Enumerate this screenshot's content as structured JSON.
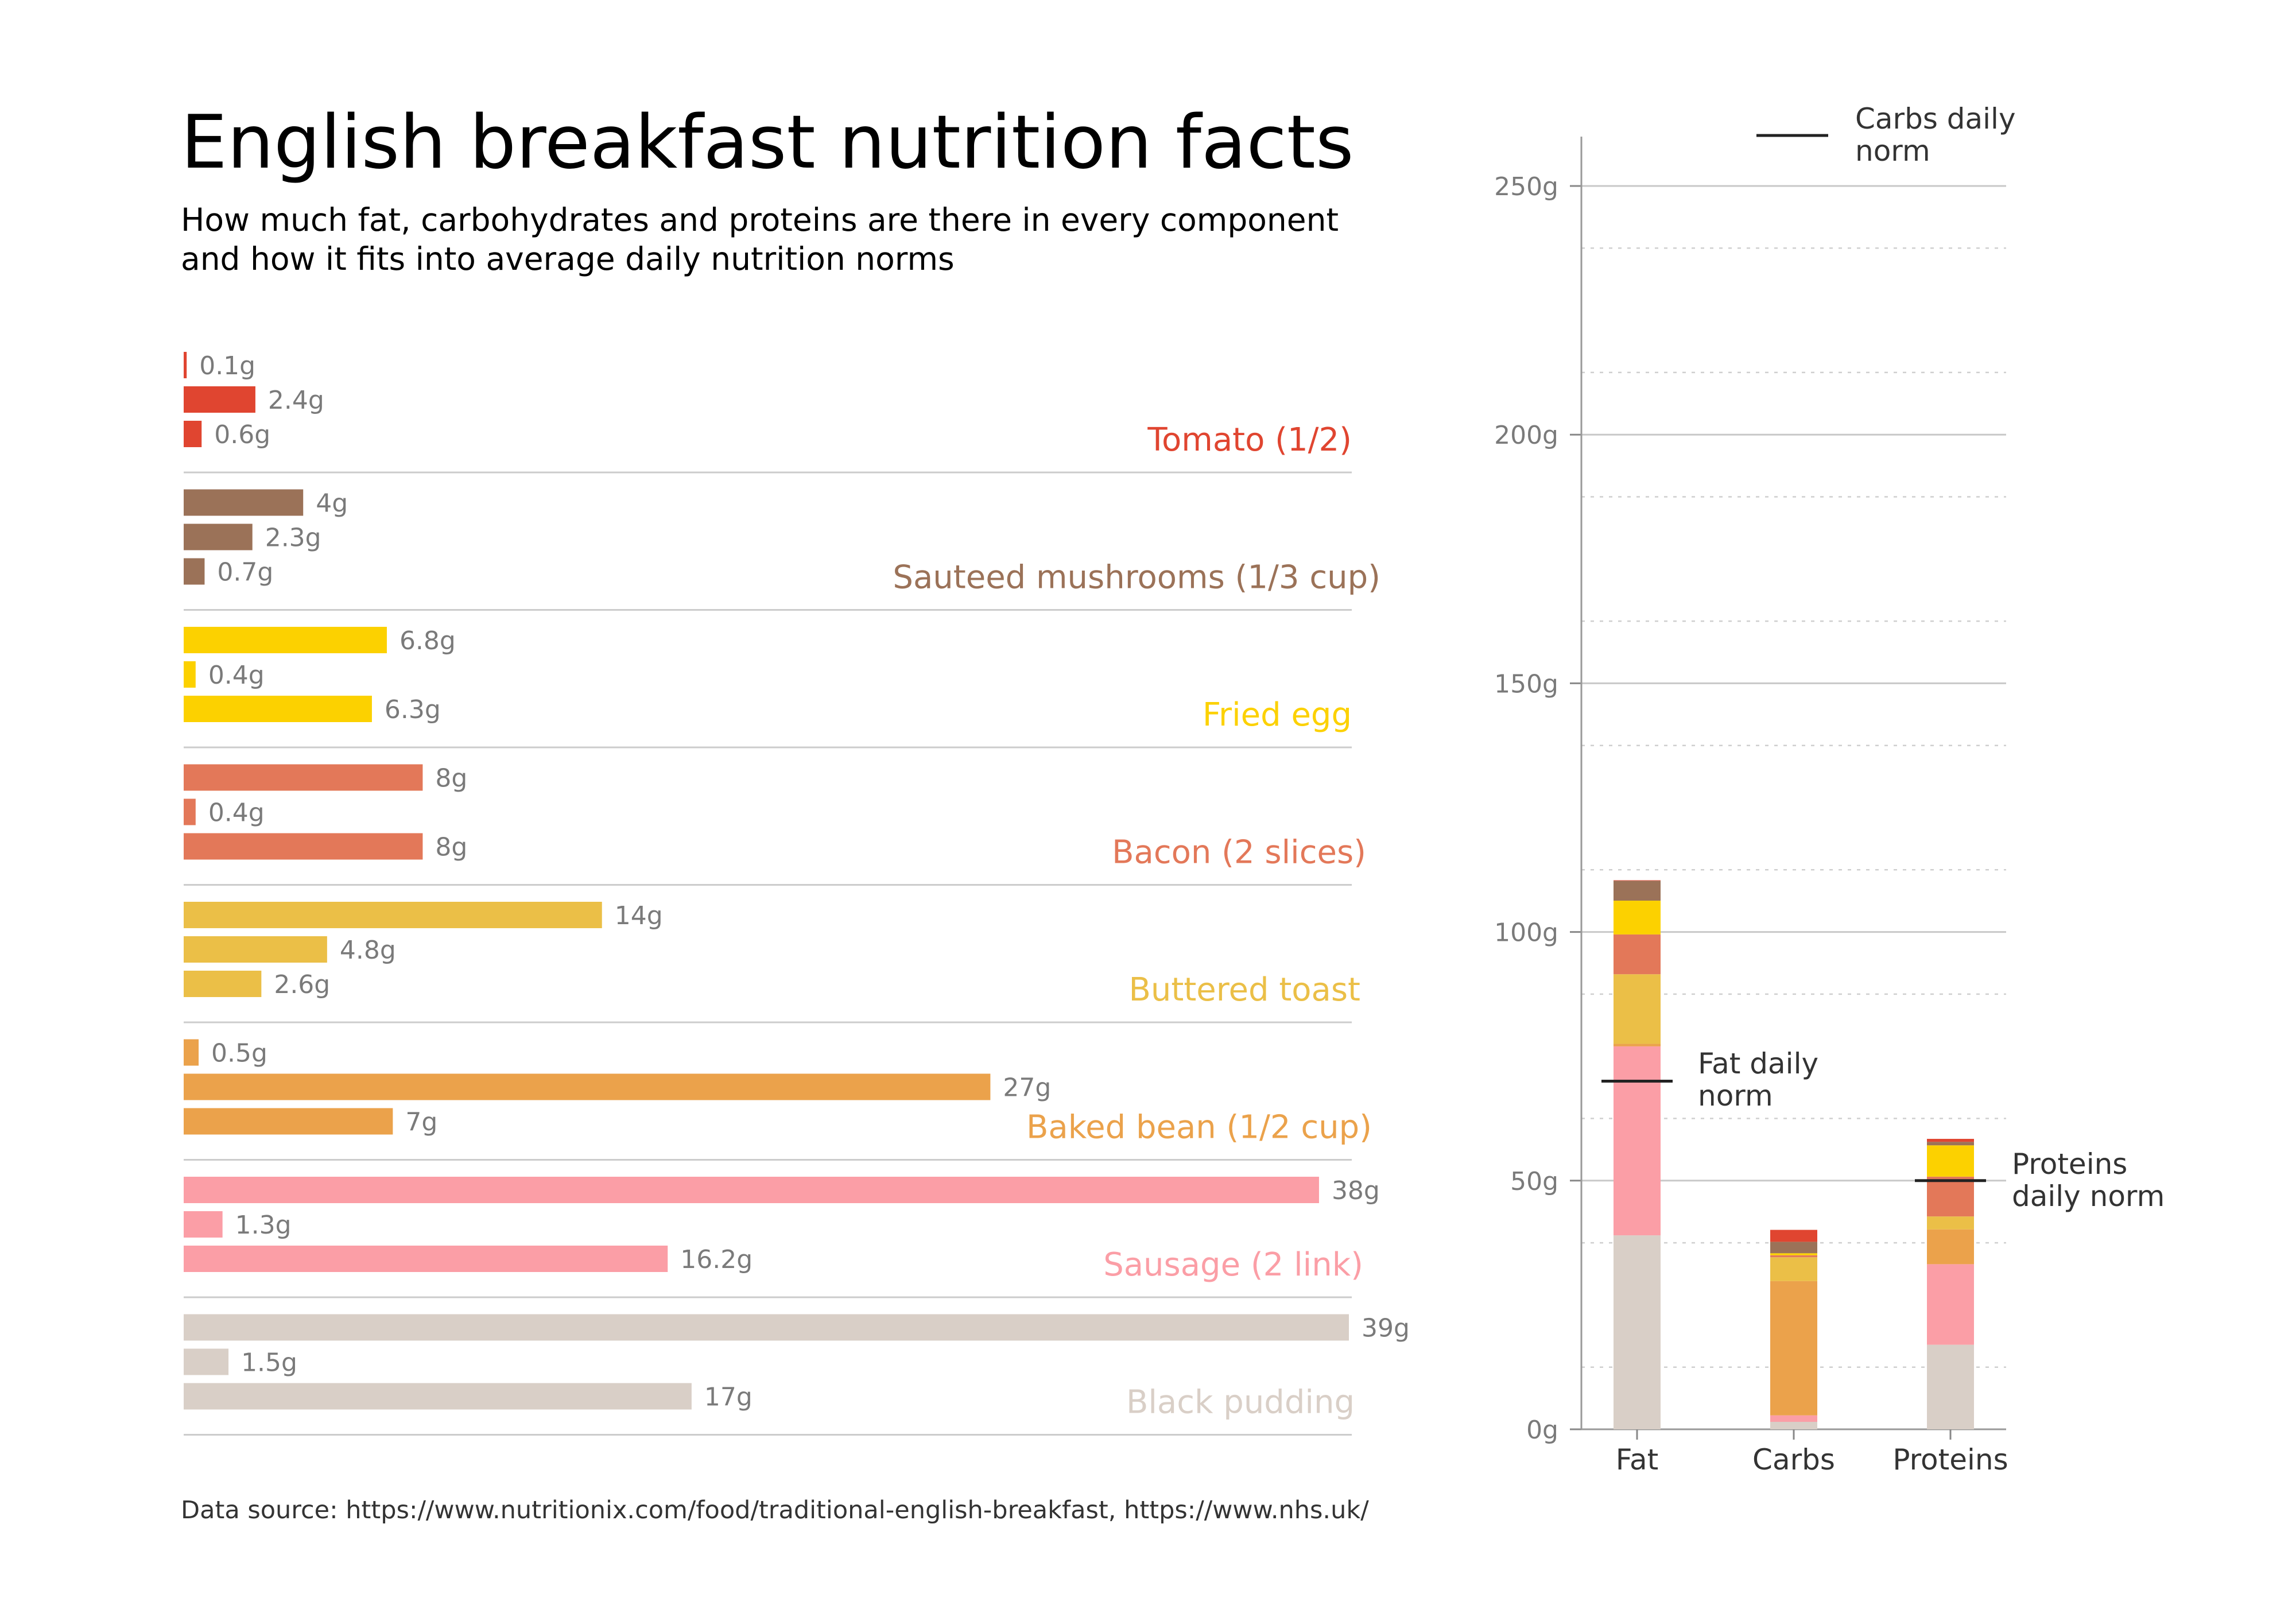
{
  "title": "English breakfast nutrition facts",
  "subtitle_lines": [
    "How much fat, carbohydrates and proteins are there in every component",
    "and how it fits into average daily nutrition norms"
  ],
  "source": "Data source: https://www.nutritionix.com/food/traditional-english-breakfast, https://www.nhs.uk/",
  "chart_data": [
    {
      "type": "bar",
      "orientation": "horizontal",
      "groups": [
        {
          "food": "Tomato (1/2)",
          "color": "#e04530",
          "values": [
            0.1,
            2.4,
            0.6
          ],
          "labels": [
            "0.1g",
            "2.4g",
            "0.6g"
          ]
        },
        {
          "food": "Sauteed mushrooms (1/3 cup)",
          "color": "#9b7258",
          "values": [
            4,
            2.3,
            0.7
          ],
          "labels": [
            "4g",
            "2.3g",
            "0.7g"
          ]
        },
        {
          "food": "Fried egg",
          "color": "#fcd100",
          "values": [
            6.8,
            0.4,
            6.3
          ],
          "labels": [
            "6.8g",
            "0.4g",
            "6.3g"
          ]
        },
        {
          "food": "Bacon (2 slices)",
          "color": "#e37859",
          "values": [
            8,
            0.4,
            8
          ],
          "labels": [
            "8g",
            "0.4g",
            "8g"
          ]
        },
        {
          "food": "Buttered toast",
          "color": "#ebbf47",
          "values": [
            14,
            4.8,
            2.6
          ],
          "labels": [
            "14g",
            "4.8g",
            "2.6g"
          ]
        },
        {
          "food": "Baked bean (1/2 cup)",
          "color": "#eba24b",
          "values": [
            0.5,
            27,
            7
          ],
          "labels": [
            "0.5g",
            "27g",
            "7g"
          ]
        },
        {
          "food": "Sausage (2 link)",
          "color": "#fb9ea6",
          "values": [
            38,
            1.3,
            16.2
          ],
          "labels": [
            "38g",
            "1.3g",
            "16.2g"
          ]
        },
        {
          "food": "Black pudding",
          "color": "#d9cfc7",
          "values": [
            39,
            1.5,
            17
          ],
          "labels": [
            "39g",
            "1.5g",
            "17g"
          ]
        }
      ],
      "xlim": [
        0,
        39
      ],
      "grid": false
    },
    {
      "type": "bar",
      "stacked": true,
      "categories": [
        "Fat",
        "Carbs",
        "Proteins"
      ],
      "ylim": [
        0,
        260
      ],
      "yticks": [
        0,
        50,
        100,
        150,
        200,
        250
      ],
      "ytick_labels": [
        "0g",
        "50g",
        "100g",
        "150g",
        "200g",
        "250g"
      ],
      "grid": true,
      "series": [
        {
          "food": "Black pudding",
          "color": "#d9cfc7",
          "values": [
            39,
            1.5,
            17
          ]
        },
        {
          "food": "Sausage (2 link)",
          "color": "#fb9ea6",
          "values": [
            38,
            1.3,
            16.2
          ]
        },
        {
          "food": "Baked bean (1/2 cup)",
          "color": "#eba24b",
          "values": [
            0.5,
            27,
            7
          ]
        },
        {
          "food": "Buttered toast",
          "color": "#ebbf47",
          "values": [
            14,
            4.8,
            2.6
          ]
        },
        {
          "food": "Bacon (2 slices)",
          "color": "#e37859",
          "values": [
            8,
            0.4,
            8
          ]
        },
        {
          "food": "Fried egg",
          "color": "#fcd100",
          "values": [
            6.8,
            0.4,
            6.3
          ]
        },
        {
          "food": "Sauteed mushrooms (1/3 cup)",
          "color": "#9b7258",
          "values": [
            4,
            2.3,
            0.7
          ]
        },
        {
          "food": "Tomato (1/2)",
          "color": "#e04530",
          "values": [
            0.1,
            2.4,
            0.6
          ]
        }
      ],
      "daily_norms": [
        {
          "category": "Fat",
          "value": 70,
          "label_lines": [
            "Fat daily",
            "norm"
          ]
        },
        {
          "category": "Carbs",
          "value": 260,
          "label_lines": [
            "Carbs daily",
            "norm"
          ]
        },
        {
          "category": "Proteins",
          "value": 50,
          "label_lines": [
            "Proteins",
            "daily norm"
          ]
        }
      ],
      "legend": {
        "label_lines": [
          "Carbs daily",
          "norm"
        ],
        "placement": "top-right"
      }
    }
  ]
}
